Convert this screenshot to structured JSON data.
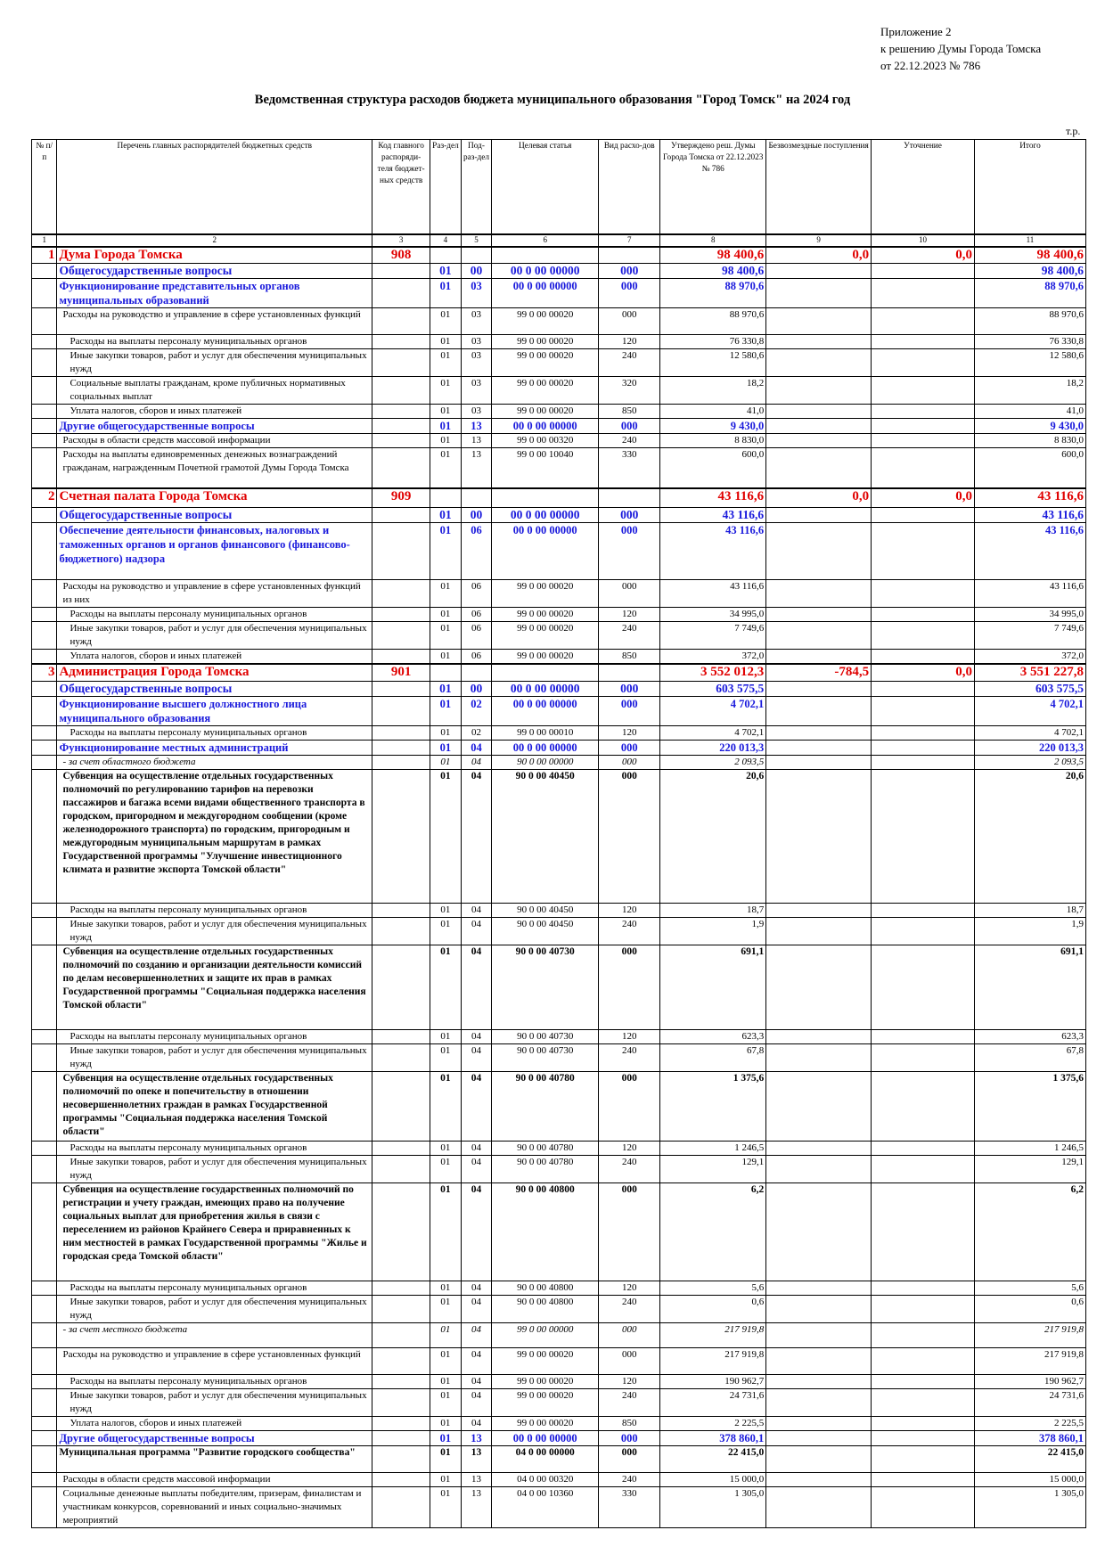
{
  "approval": {
    "line1": "Приложение 2",
    "line2": "к решению Думы Города Томска",
    "line3": "от 22.12.2023 № 786"
  },
  "title": "Ведомственная структура расходов бюджета муниципального образования \"Город Томск\" на 2024 год",
  "unit": "т.р.",
  "headers": {
    "num": "№ п/п",
    "name": "Перечень главных распорядителей бюджетных средств",
    "code": "Код главного распоряди-теля бюджет-ных средств",
    "section": "Раз-дел",
    "subsection": "Под-раз-дел",
    "target": "Целевая статья",
    "type": "Вид расхо-дов",
    "approved": "Утверждено реш. Думы Города Томска от 22.12.2023 № 786",
    "grants": "Безвозмездные поступления",
    "adjust": "Уточнение",
    "total": "Итого"
  },
  "column_numbers": [
    "1",
    "2",
    "3",
    "4",
    "5",
    "6",
    "7",
    "8",
    "9",
    "10",
    "11"
  ],
  "rows": [
    {
      "level": "l0",
      "sep": true,
      "idx": "1",
      "name": "Дума Города Томска",
      "code": "908",
      "sec": "",
      "sub": "",
      "cs": "",
      "vr": "",
      "appr": "98 400,6",
      "gr": "0,0",
      "adj": "0,0",
      "tot": "98 400,6",
      "h": 17
    },
    {
      "level": "l1",
      "name": "Общегосударственные вопросы",
      "sec": "01",
      "sub": "00",
      "cs": "00 0 00 00000",
      "vr": "000",
      "appr": "98 400,6",
      "tot": "98 400,6",
      "h": 17
    },
    {
      "level": "l2",
      "name": "Функционирование представительных органов муниципальных образований",
      "sec": "01",
      "sub": "03",
      "cs": "00 0 00 00000",
      "vr": "000",
      "appr": "88 970,6",
      "tot": "88 970,6",
      "h": 32
    },
    {
      "level": "n",
      "ind": 1,
      "name": "Расходы на руководство и управление в сфере установленных функций",
      "sec": "01",
      "sub": "03",
      "cs": "99 0 00 00020",
      "vr": "000",
      "appr": "88 970,6",
      "tot": "88 970,6",
      "h": 30
    },
    {
      "level": "n",
      "ind": 2,
      "name": "Расходы на выплаты персоналу муниципальных органов",
      "sec": "01",
      "sub": "03",
      "cs": "99 0 00 00020",
      "vr": "120",
      "appr": "76 330,8",
      "tot": "76 330,8",
      "h": 15
    },
    {
      "level": "n",
      "ind": 2,
      "name": "Иные закупки товаров, работ и услуг для обеспечения муниципальных нужд",
      "sec": "01",
      "sub": "03",
      "cs": "99 0 00 00020",
      "vr": "240",
      "appr": "12 580,6",
      "tot": "12 580,6",
      "h": 30
    },
    {
      "level": "n",
      "ind": 2,
      "name": "Социальные выплаты гражданам, кроме публичных нормативных социальных выплат",
      "sec": "01",
      "sub": "03",
      "cs": "99 0 00 00020",
      "vr": "320",
      "appr": "18,2",
      "tot": "18,2",
      "h": 30
    },
    {
      "level": "n",
      "ind": 2,
      "name": "Уплата налогов, сборов и иных платежей",
      "sec": "01",
      "sub": "03",
      "cs": "99 0 00 00020",
      "vr": "850",
      "appr": "41,0",
      "tot": "41,0",
      "h": 15
    },
    {
      "level": "l2",
      "name": "Другие общегосударственные вопросы",
      "sec": "01",
      "sub": "13",
      "cs": "00 0 00 00000",
      "vr": "000",
      "appr": "9 430,0",
      "tot": "9 430,0",
      "h": 16
    },
    {
      "level": "n",
      "ind": 1,
      "name": "Расходы в области средств массовой информации",
      "sec": "01",
      "sub": "13",
      "cs": "99 0 00 00320",
      "vr": "240",
      "appr": "8 830,0",
      "tot": "8 830,0",
      "h": 14
    },
    {
      "level": "n",
      "ind": 1,
      "name": "Расходы на выплаты единовременных денежных вознаграждений гражданам, награжденным Почетной грамотой Думы Города Томска",
      "sec": "01",
      "sub": "13",
      "cs": "99 0 00 10040",
      "vr": "330",
      "appr": "600,0",
      "tot": "600,0",
      "h": 45
    },
    {
      "level": "l0",
      "sep": true,
      "idx": "2",
      "name": "Счетная палата Города Томска",
      "code": "909",
      "sec": "",
      "sub": "",
      "cs": "",
      "vr": "",
      "appr": "43 116,6",
      "gr": "0,0",
      "adj": "0,0",
      "tot": "43 116,6",
      "h": 22
    },
    {
      "level": "l1",
      "name": "Общегосударственные вопросы",
      "sec": "01",
      "sub": "00",
      "cs": "00 0 00 00000",
      "vr": "000",
      "appr": "43 116,6",
      "tot": "43 116,6",
      "h": 17
    },
    {
      "level": "l2",
      "name": "Обеспечение деятельности финансовых, налоговых и таможенных органов и органов финансового (финансово-бюджетного) надзора",
      "sec": "01",
      "sub": "06",
      "cs": "00 0 00 00000",
      "vr": "000",
      "appr": "43 116,6",
      "tot": "43 116,6",
      "h": 64
    },
    {
      "level": "n",
      "ind": 1,
      "name": "Расходы на руководство и управление в сфере установленных функций из них",
      "sec": "01",
      "sub": "06",
      "cs": "99 0 00 00020",
      "vr": "000",
      "appr": "43 116,6",
      "tot": "43 116,6",
      "h": 30
    },
    {
      "level": "n",
      "ind": 2,
      "name": "Расходы на выплаты персоналу муниципальных органов",
      "sec": "01",
      "sub": "06",
      "cs": "99 0 00 00020",
      "vr": "120",
      "appr": "34 995,0",
      "tot": "34 995,0",
      "h": 15
    },
    {
      "level": "n",
      "ind": 2,
      "name": "Иные закупки товаров, работ и услуг для обеспечения муниципальных нужд",
      "sec": "01",
      "sub": "06",
      "cs": "99 0 00 00020",
      "vr": "240",
      "appr": "7 749,6",
      "tot": "7 749,6",
      "h": 30
    },
    {
      "level": "n",
      "ind": 2,
      "name": "Уплата налогов, сборов и иных платежей",
      "sec": "01",
      "sub": "06",
      "cs": "99 0 00 00020",
      "vr": "850",
      "appr": "372,0",
      "tot": "372,0",
      "h": 15
    },
    {
      "level": "l0",
      "sep": true,
      "idx": "3",
      "name": "Администрация Города Томска",
      "code": "901",
      "sec": "",
      "sub": "",
      "cs": "",
      "vr": "",
      "appr": "3 552 012,3",
      "gr": "-784,5",
      "adj": "0,0",
      "tot": "3 551 227,8",
      "h": 19
    },
    {
      "level": "l1",
      "name": "Общегосударственные вопросы",
      "sec": "01",
      "sub": "00",
      "cs": "00 0 00 00000",
      "vr": "000",
      "appr": "603 575,5",
      "tot": "603 575,5",
      "h": 17
    },
    {
      "level": "l2",
      "name": "Функционирование высшего должностного лица муниципального образования",
      "sec": "01",
      "sub": "02",
      "cs": "00 0 00 00000",
      "vr": "000",
      "appr": "4 702,1",
      "tot": "4 702,1",
      "h": 32
    },
    {
      "level": "n",
      "ind": 2,
      "name": "Расходы на выплаты персоналу муниципальных органов",
      "sec": "01",
      "sub": "02",
      "cs": "99 0 00 00010",
      "vr": "120",
      "appr": "4 702,1",
      "tot": "4 702,1",
      "h": 15
    },
    {
      "level": "l2",
      "name": "Функционирование местных администраций",
      "sec": "01",
      "sub": "04",
      "cs": "00 0 00 00000",
      "vr": "000",
      "appr": "220 013,3",
      "tot": "220 013,3",
      "h": 16
    },
    {
      "level": "it",
      "ind": 1,
      "name": "- за счет областного бюджета",
      "sec": "01",
      "sub": "04",
      "cs": "90 0 00 00000",
      "vr": "000",
      "appr": "2 093,5",
      "tot": "2 093,5",
      "h": 12
    },
    {
      "level": "bk",
      "ind": 1,
      "name": "Субвенция на осуществление отдельных государственных полномочий по регулированию тарифов на перевозки пассажиров и багажа всеми видами общественного транспорта в городском, пригородном и междугородном сообщении (кроме железнодорожного транспорта) по городским, пригородным и междугородным муниципальным маршрутам в рамках Государственной программы \"Улучшение инвестиционного климата и развитие экспорта Томской области\"",
      "sec": "01",
      "sub": "04",
      "cs": "90 0 00 40450",
      "vr": "000",
      "appr": "20,6",
      "tot": "20,6",
      "h": 150
    },
    {
      "level": "n",
      "ind": 2,
      "name": "Расходы на выплаты персоналу муниципальных органов",
      "sec": "01",
      "sub": "04",
      "cs": "90 0 00 40450",
      "vr": "120",
      "appr": "18,7",
      "tot": "18,7",
      "h": 15
    },
    {
      "level": "n",
      "ind": 2,
      "name": "Иные закупки товаров, работ и услуг для обеспечения муниципальных нужд",
      "sec": "01",
      "sub": "04",
      "cs": "90 0 00 40450",
      "vr": "240",
      "appr": "1,9",
      "tot": "1,9",
      "h": 30
    },
    {
      "level": "bk",
      "ind": 1,
      "name": "Субвенция на осуществление отдельных государственных полномочий по созданию и организации деятельности комиссий по делам несовершеннолетних и защите их прав в рамках Государственной программы \"Социальная поддержка населения Томской области\"",
      "sec": "01",
      "sub": "04",
      "cs": "90 0 00 40730",
      "vr": "000",
      "appr": "691,1",
      "tot": "691,1",
      "h": 95
    },
    {
      "level": "n",
      "ind": 2,
      "name": "Расходы на выплаты персоналу муниципальных органов",
      "sec": "01",
      "sub": "04",
      "cs": "90 0 00 40730",
      "vr": "120",
      "appr": "623,3",
      "tot": "623,3",
      "h": 15
    },
    {
      "level": "n",
      "ind": 2,
      "name": "Иные закупки товаров, работ и услуг для обеспечения муниципальных нужд",
      "sec": "01",
      "sub": "04",
      "cs": "90 0 00 40730",
      "vr": "240",
      "appr": "67,8",
      "tot": "67,8",
      "h": 30
    },
    {
      "level": "bk",
      "ind": 1,
      "name": "Субвенция на осуществление отдельных государственных полномочий по опеке и попечительству в отношении несовершеннолетних граждан в рамках Государственной программы \"Социальная поддержка населения Томской области\"",
      "sec": "01",
      "sub": "04",
      "cs": "90 0 00 40780",
      "vr": "000",
      "appr": "1 375,6",
      "tot": "1 375,6",
      "h": 78
    },
    {
      "level": "n",
      "ind": 2,
      "name": "Расходы на выплаты персоналу муниципальных органов",
      "sec": "01",
      "sub": "04",
      "cs": "90 0 00 40780",
      "vr": "120",
      "appr": "1 246,5",
      "tot": "1 246,5",
      "h": 15
    },
    {
      "level": "n",
      "ind": 2,
      "name": "Иные закупки товаров, работ и услуг для обеспечения муниципальных нужд",
      "sec": "01",
      "sub": "04",
      "cs": "90 0 00 40780",
      "vr": "240",
      "appr": "129,1",
      "tot": "129,1",
      "h": 30
    },
    {
      "level": "bk",
      "ind": 1,
      "name": "Субвенция на осуществление государственных полномочий по регистрации и учету граждан, имеющих право на получение социальных выплат для приобретения жилья в связи с переселением из районов Крайнего Севера и приравненных к ним местностей в рамках Государственной программы \"Жилье и городская среда Томской области\"",
      "sec": "01",
      "sub": "04",
      "cs": "90 0 00 40800",
      "vr": "000",
      "appr": "6,2",
      "tot": "6,2",
      "h": 110
    },
    {
      "level": "n",
      "ind": 2,
      "name": "Расходы на выплаты персоналу муниципальных органов",
      "sec": "01",
      "sub": "04",
      "cs": "90 0 00 40800",
      "vr": "120",
      "appr": "5,6",
      "tot": "5,6",
      "h": 15
    },
    {
      "level": "n",
      "ind": 2,
      "name": "Иные закупки товаров, работ и услуг для обеспечения муниципальных нужд",
      "sec": "01",
      "sub": "04",
      "cs": "90 0 00 40800",
      "vr": "240",
      "appr": "0,6",
      "tot": "0,6",
      "h": 30
    },
    {
      "level": "it",
      "ind": 1,
      "name": "- за счет местного бюджета",
      "sec": "01",
      "sub": "04",
      "cs": "99 0 00 00000",
      "vr": "000",
      "appr": "217 919,8",
      "tot": "217 919,8",
      "h": 28
    },
    {
      "level": "n",
      "ind": 1,
      "name": "Расходы на руководство и управление в сфере установленных функций",
      "sec": "01",
      "sub": "04",
      "cs": "99 0 00 00020",
      "vr": "000",
      "appr": "217 919,8",
      "tot": "217 919,8",
      "h": 30
    },
    {
      "level": "n",
      "ind": 2,
      "name": "Расходы на выплаты персоналу муниципальных органов",
      "sec": "01",
      "sub": "04",
      "cs": "99 0 00 00020",
      "vr": "120",
      "appr": "190 962,7",
      "tot": "190 962,7",
      "h": 15
    },
    {
      "level": "n",
      "ind": 2,
      "name": "Иные закупки товаров, работ и услуг для обеспечения муниципальных нужд",
      "sec": "01",
      "sub": "04",
      "cs": "99 0 00 00020",
      "vr": "240",
      "appr": "24 731,6",
      "tot": "24 731,6",
      "h": 30
    },
    {
      "level": "n",
      "ind": 2,
      "name": "Уплата налогов, сборов и иных платежей",
      "sec": "01",
      "sub": "04",
      "cs": "99 0 00 00020",
      "vr": "850",
      "appr": "2 225,5",
      "tot": "2 225,5",
      "h": 15
    },
    {
      "level": "l2",
      "name": "Другие общегосударственные вопросы",
      "sec": "01",
      "sub": "13",
      "cs": "00 0 00 00000",
      "vr": "000",
      "appr": "378 860,1",
      "tot": "378 860,1",
      "h": 16
    },
    {
      "level": "bk",
      "ind": 0,
      "name": "Муниципальная программа \"Развитие городского сообщества\"",
      "sec": "01",
      "sub": "13",
      "cs": "04 0 00 00000",
      "vr": "000",
      "appr": "22 415,0",
      "tot": "22 415,0",
      "h": 30
    },
    {
      "level": "n",
      "ind": 1,
      "name": "Расходы в области средств массовой информации",
      "sec": "01",
      "sub": "13",
      "cs": "04 0 00 00320",
      "vr": "240",
      "appr": "15 000,0",
      "tot": "15 000,0",
      "h": 14
    },
    {
      "level": "n",
      "ind": 1,
      "name": "Социальные денежные выплаты победителям, призерам, финалистам и участникам конкурсов, соревнований и иных социально-значимых мероприятий",
      "sec": "01",
      "sub": "13",
      "cs": "04 0 00 10360",
      "vr": "330",
      "appr": "1 305,0",
      "tot": "1 305,0",
      "h": 46
    }
  ]
}
